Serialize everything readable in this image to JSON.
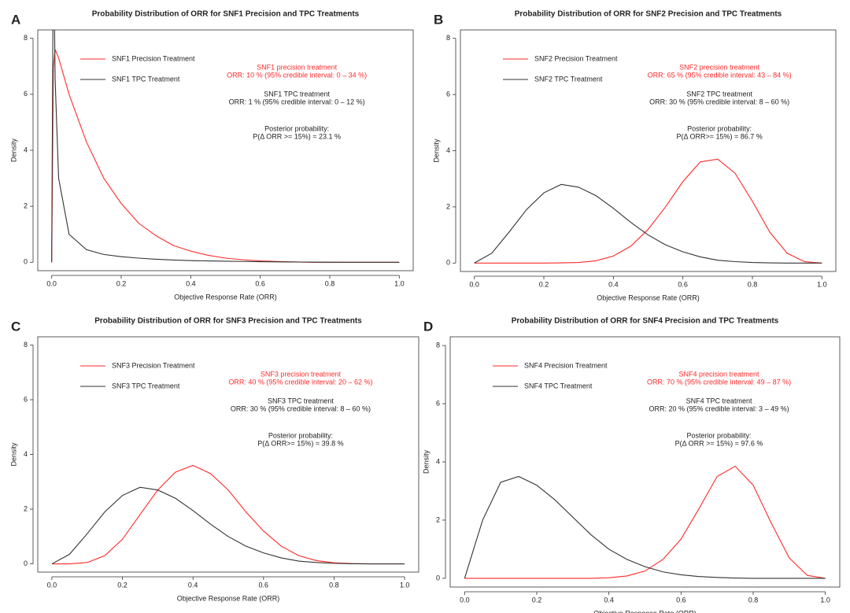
{
  "chart_data": [
    {
      "type": "line",
      "panel_label": "A",
      "title": "Probability Distribution of ORR for SNF1 Precision and TPC Treatments",
      "xlabel": "Objective Response Rate (ORR)",
      "ylabel": "Density",
      "x": [
        0,
        0.005,
        0.01,
        0.02,
        0.05,
        0.1,
        0.15,
        0.2,
        0.25,
        0.3,
        0.35,
        0.4,
        0.45,
        0.5,
        0.55,
        0.6,
        0.65,
        0.7,
        0.75,
        0.8,
        0.85,
        0.9,
        0.95,
        1.0
      ],
      "series": [
        {
          "name": "SNF1 Precision Treatment",
          "color": "#ff2a2a",
          "values": [
            0,
            7.0,
            7.6,
            7.3,
            6.0,
            4.3,
            3.0,
            2.1,
            1.4,
            0.95,
            0.6,
            0.4,
            0.25,
            0.15,
            0.09,
            0.05,
            0.03,
            0.01,
            0,
            0,
            0,
            0,
            0,
            0
          ]
        },
        {
          "name": "SNF1 TPC Treatment",
          "color": "#333333",
          "values": [
            0,
            12,
            6.5,
            3.0,
            1.0,
            0.45,
            0.28,
            0.2,
            0.15,
            0.11,
            0.08,
            0.06,
            0.05,
            0.04,
            0.03,
            0.02,
            0.015,
            0.01,
            0.007,
            0.005,
            0,
            0,
            0,
            0
          ]
        }
      ],
      "annotations": [
        {
          "color": "#ff2a2a",
          "lines": [
            "SNF1 precision treatment",
            "ORR: 10 % (95% credible interval: 0 – 34 %)"
          ]
        },
        {
          "color": "#222222",
          "lines": [
            "SNF1 TPC treatment",
            "ORR: 1 % (95% credible interval: 0 – 12 %)"
          ]
        },
        {
          "color": "#222222",
          "lines": [
            "Posterior probability:",
            "P(Δ ORR >= 15%) =  23.1 %"
          ]
        }
      ],
      "xlim": [
        -0.04,
        1.04
      ],
      "ylim": [
        -0.3,
        8.3
      ],
      "xticks": [
        {
          "value": 0,
          "label": "0.0"
        },
        0.2,
        0.4,
        0.6,
        0.8,
        {
          "value": 1,
          "label": "1.0"
        }
      ],
      "yticks": [
        0,
        2,
        4,
        6,
        8
      ]
    },
    {
      "type": "line",
      "panel_label": "B",
      "title": "Probability Distribution of ORR for SNF2 Precision and TPC Treatments",
      "xlabel": "Objective Response Rate (ORR)",
      "ylabel": "Density",
      "x": [
        0,
        0.05,
        0.1,
        0.15,
        0.2,
        0.25,
        0.3,
        0.35,
        0.4,
        0.45,
        0.5,
        0.55,
        0.6,
        0.65,
        0.7,
        0.75,
        0.8,
        0.85,
        0.9,
        0.95,
        1.0
      ],
      "series": [
        {
          "name": "SNF2 Precision Treatment",
          "color": "#ff2a2a",
          "values": [
            0,
            0,
            0,
            0,
            0,
            0.005,
            0.02,
            0.08,
            0.25,
            0.6,
            1.2,
            2.0,
            2.9,
            3.6,
            3.7,
            3.2,
            2.2,
            1.1,
            0.35,
            0.05,
            0
          ]
        },
        {
          "name": "SNF2 TPC Treatment",
          "color": "#333333",
          "values": [
            0,
            0.35,
            1.1,
            1.9,
            2.5,
            2.8,
            2.7,
            2.4,
            1.95,
            1.45,
            1.0,
            0.65,
            0.4,
            0.22,
            0.1,
            0.05,
            0.02,
            0.005,
            0,
            0,
            0
          ]
        }
      ],
      "annotations": [
        {
          "color": "#ff2a2a",
          "lines": [
            "SNF2 precision treatment",
            "ORR: 65 % (95% credible interval: 43 – 84 %)"
          ]
        },
        {
          "color": "#222222",
          "lines": [
            "SNF2 TPC treatment",
            "ORR: 30 % (95% credible interval: 8 – 60 %)"
          ]
        },
        {
          "color": "#222222",
          "lines": [
            "Posterior probability:",
            "P(Δ ORR>= 15%) =  86.7 %"
          ]
        }
      ],
      "xlim": [
        -0.04,
        1.04
      ],
      "ylim": [
        -0.3,
        8.3
      ],
      "xticks": [
        {
          "value": 0,
          "label": "0.0"
        },
        0.2,
        0.4,
        0.6,
        0.8,
        {
          "value": 1,
          "label": "1.0"
        }
      ],
      "yticks": [
        0,
        2,
        4,
        6,
        8
      ]
    },
    {
      "type": "line",
      "panel_label": "C",
      "title": "Probability Distribution of ORR for SNF3 Precision and TPC Treatments",
      "xlabel": "Objective Response Rate (ORR)",
      "ylabel": "Density",
      "x": [
        0,
        0.05,
        0.1,
        0.15,
        0.2,
        0.25,
        0.3,
        0.35,
        0.4,
        0.45,
        0.5,
        0.55,
        0.6,
        0.65,
        0.7,
        0.75,
        0.8,
        0.85,
        0.9,
        0.95,
        1.0
      ],
      "series": [
        {
          "name": "SNF3 Precision Treatment",
          "color": "#ff2a2a",
          "values": [
            0,
            0,
            0.05,
            0.3,
            0.9,
            1.8,
            2.7,
            3.35,
            3.6,
            3.3,
            2.7,
            1.9,
            1.2,
            0.65,
            0.3,
            0.12,
            0.04,
            0.01,
            0,
            0,
            0
          ]
        },
        {
          "name": "SNF3 TPC Treatment",
          "color": "#333333",
          "values": [
            0,
            0.35,
            1.1,
            1.9,
            2.5,
            2.8,
            2.7,
            2.4,
            1.95,
            1.45,
            1.0,
            0.65,
            0.4,
            0.22,
            0.1,
            0.05,
            0.02,
            0.005,
            0,
            0,
            0
          ]
        }
      ],
      "annotations": [
        {
          "color": "#ff2a2a",
          "lines": [
            "SNF3 precision treatment",
            "ORR: 40 % (95% credible interval: 20 – 62 %)"
          ]
        },
        {
          "color": "#222222",
          "lines": [
            "SNF3 TPC treatment",
            "ORR: 30 % (95% credible interval: 8 – 60 %)"
          ]
        },
        {
          "color": "#222222",
          "lines": [
            "Posterior probability:",
            "P(Δ ORR>= 15%) =  39.8 %"
          ]
        }
      ],
      "xlim": [
        -0.04,
        1.04
      ],
      "ylim": [
        -0.3,
        8.3
      ],
      "xticks": [
        {
          "value": 0,
          "label": "0.0"
        },
        0.2,
        0.4,
        0.6,
        0.8,
        {
          "value": 1,
          "label": "1.0"
        }
      ],
      "yticks": [
        0,
        2,
        4,
        6,
        8
      ]
    },
    {
      "type": "line",
      "panel_label": "D",
      "title": "Probability Distribution of ORR for SNF4 Precision and TPC Treatments",
      "xlabel": "Objective Response Rate (ORR)",
      "ylabel": "Density",
      "x": [
        0,
        0.05,
        0.1,
        0.15,
        0.2,
        0.25,
        0.3,
        0.35,
        0.4,
        0.45,
        0.5,
        0.55,
        0.6,
        0.65,
        0.7,
        0.75,
        0.8,
        0.85,
        0.9,
        0.95,
        1.0
      ],
      "series": [
        {
          "name": "SNF4 Precision Treatment",
          "color": "#ff2a2a",
          "values": [
            0,
            0,
            0,
            0,
            0,
            0,
            0,
            0,
            0.02,
            0.08,
            0.25,
            0.65,
            1.35,
            2.4,
            3.5,
            3.85,
            3.2,
            1.9,
            0.7,
            0.1,
            0
          ]
        },
        {
          "name": "SNF4 TPC Treatment",
          "color": "#333333",
          "values": [
            0,
            2.0,
            3.3,
            3.5,
            3.2,
            2.7,
            2.1,
            1.5,
            1.0,
            0.65,
            0.4,
            0.22,
            0.12,
            0.06,
            0.03,
            0.01,
            0,
            0,
            0,
            0,
            0
          ]
        }
      ],
      "annotations": [
        {
          "color": "#ff2a2a",
          "lines": [
            "SNF4 precision treatment",
            "ORR: 70 % (95% credible interval: 49 – 87 %)"
          ]
        },
        {
          "color": "#222222",
          "lines": [
            "SNF4 TPC treatment",
            "ORR: 20 % (95% credible interval: 3 – 49 %)"
          ]
        },
        {
          "color": "#222222",
          "lines": [
            "Posterior probability:",
            "P(Δ ORR >= 15%) =  97.6 %"
          ]
        }
      ],
      "xlim": [
        -0.04,
        1.04
      ],
      "ylim": [
        -0.3,
        8.3
      ],
      "xticks": [
        {
          "value": 0,
          "label": "0.0"
        },
        0.2,
        0.4,
        0.6,
        0.8,
        {
          "value": 1,
          "label": "1.0"
        }
      ],
      "yticks": [
        0,
        2,
        4,
        6,
        8
      ]
    }
  ]
}
